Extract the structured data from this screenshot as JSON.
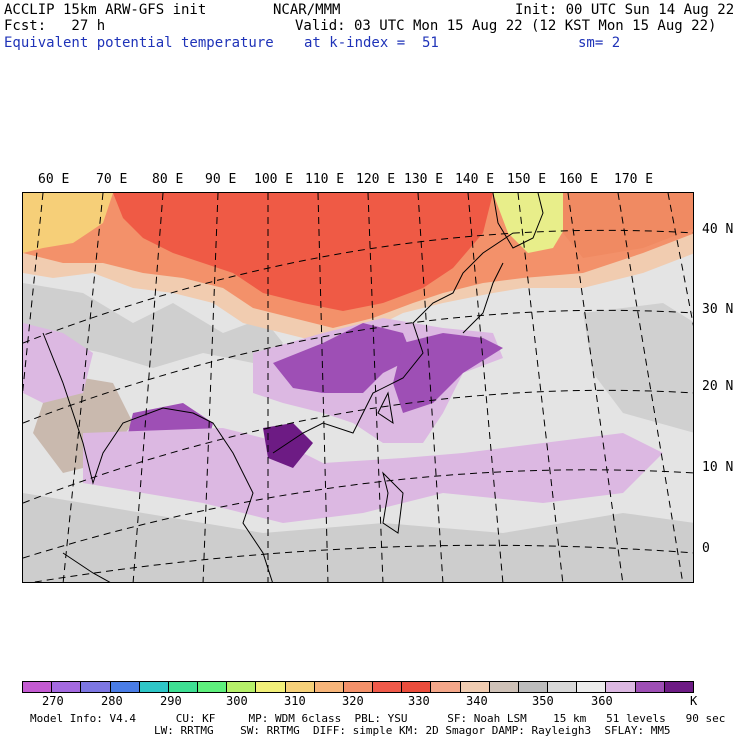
{
  "header": {
    "model": "ACCLIP 15km ARW-GFS init",
    "forecast": "Fcst:   27 h",
    "field": "Equivalent potential temperature",
    "center": "NCAR/MMM",
    "valid": "Valid: 03 UTC Mon 15 Aug 22 (12 KST Mon 15 Aug 22)",
    "level": "at k-index =  51",
    "init": "Init: 00 UTC Sun 14 Aug 22",
    "smooth": "sm= 2"
  },
  "map": {
    "lon_labels": [
      "60 E",
      "70 E",
      "80 E",
      "90 E",
      "100 E",
      "110 E",
      "120 E",
      "130 E",
      "140 E",
      "150 E",
      "160 E",
      "170 E"
    ],
    "lat_labels": [
      "40 N",
      "30 N",
      "20 N",
      "10 N",
      "0"
    ]
  },
  "colorbar": {
    "unit": "K",
    "tick_labels": [
      "270",
      "280",
      "290",
      "300",
      "310",
      "320",
      "330",
      "340",
      "350",
      "360"
    ],
    "colors": [
      "#c45bd2",
      "#a46ae0",
      "#7d77e3",
      "#4a7de6",
      "#2ec6c7",
      "#3edf93",
      "#5ef07d",
      "#b6f06a",
      "#f2f07a",
      "#f6d17a",
      "#f7b57a",
      "#f3916a",
      "#f05a4a",
      "#ea4d3c",
      "#f4a78a",
      "#f1cdb2",
      "#cfc2b8",
      "#bdbdbd",
      "#d8d8d8",
      "#ececec",
      "#dcb8e2",
      "#9e4fb5",
      "#6d1b84"
    ]
  },
  "footer": {
    "line1": "Model Info: V4.4      CU: KF     MP: WDM 6class  PBL: YSU      SF: Noah LSM    15 km   51 levels   90 sec",
    "line2": "LW: RRTMG    SW: RRTMG  DIFF: simple KM: 2D Smagor DAMP: Rayleigh3  SFLAY: MM5"
  }
}
